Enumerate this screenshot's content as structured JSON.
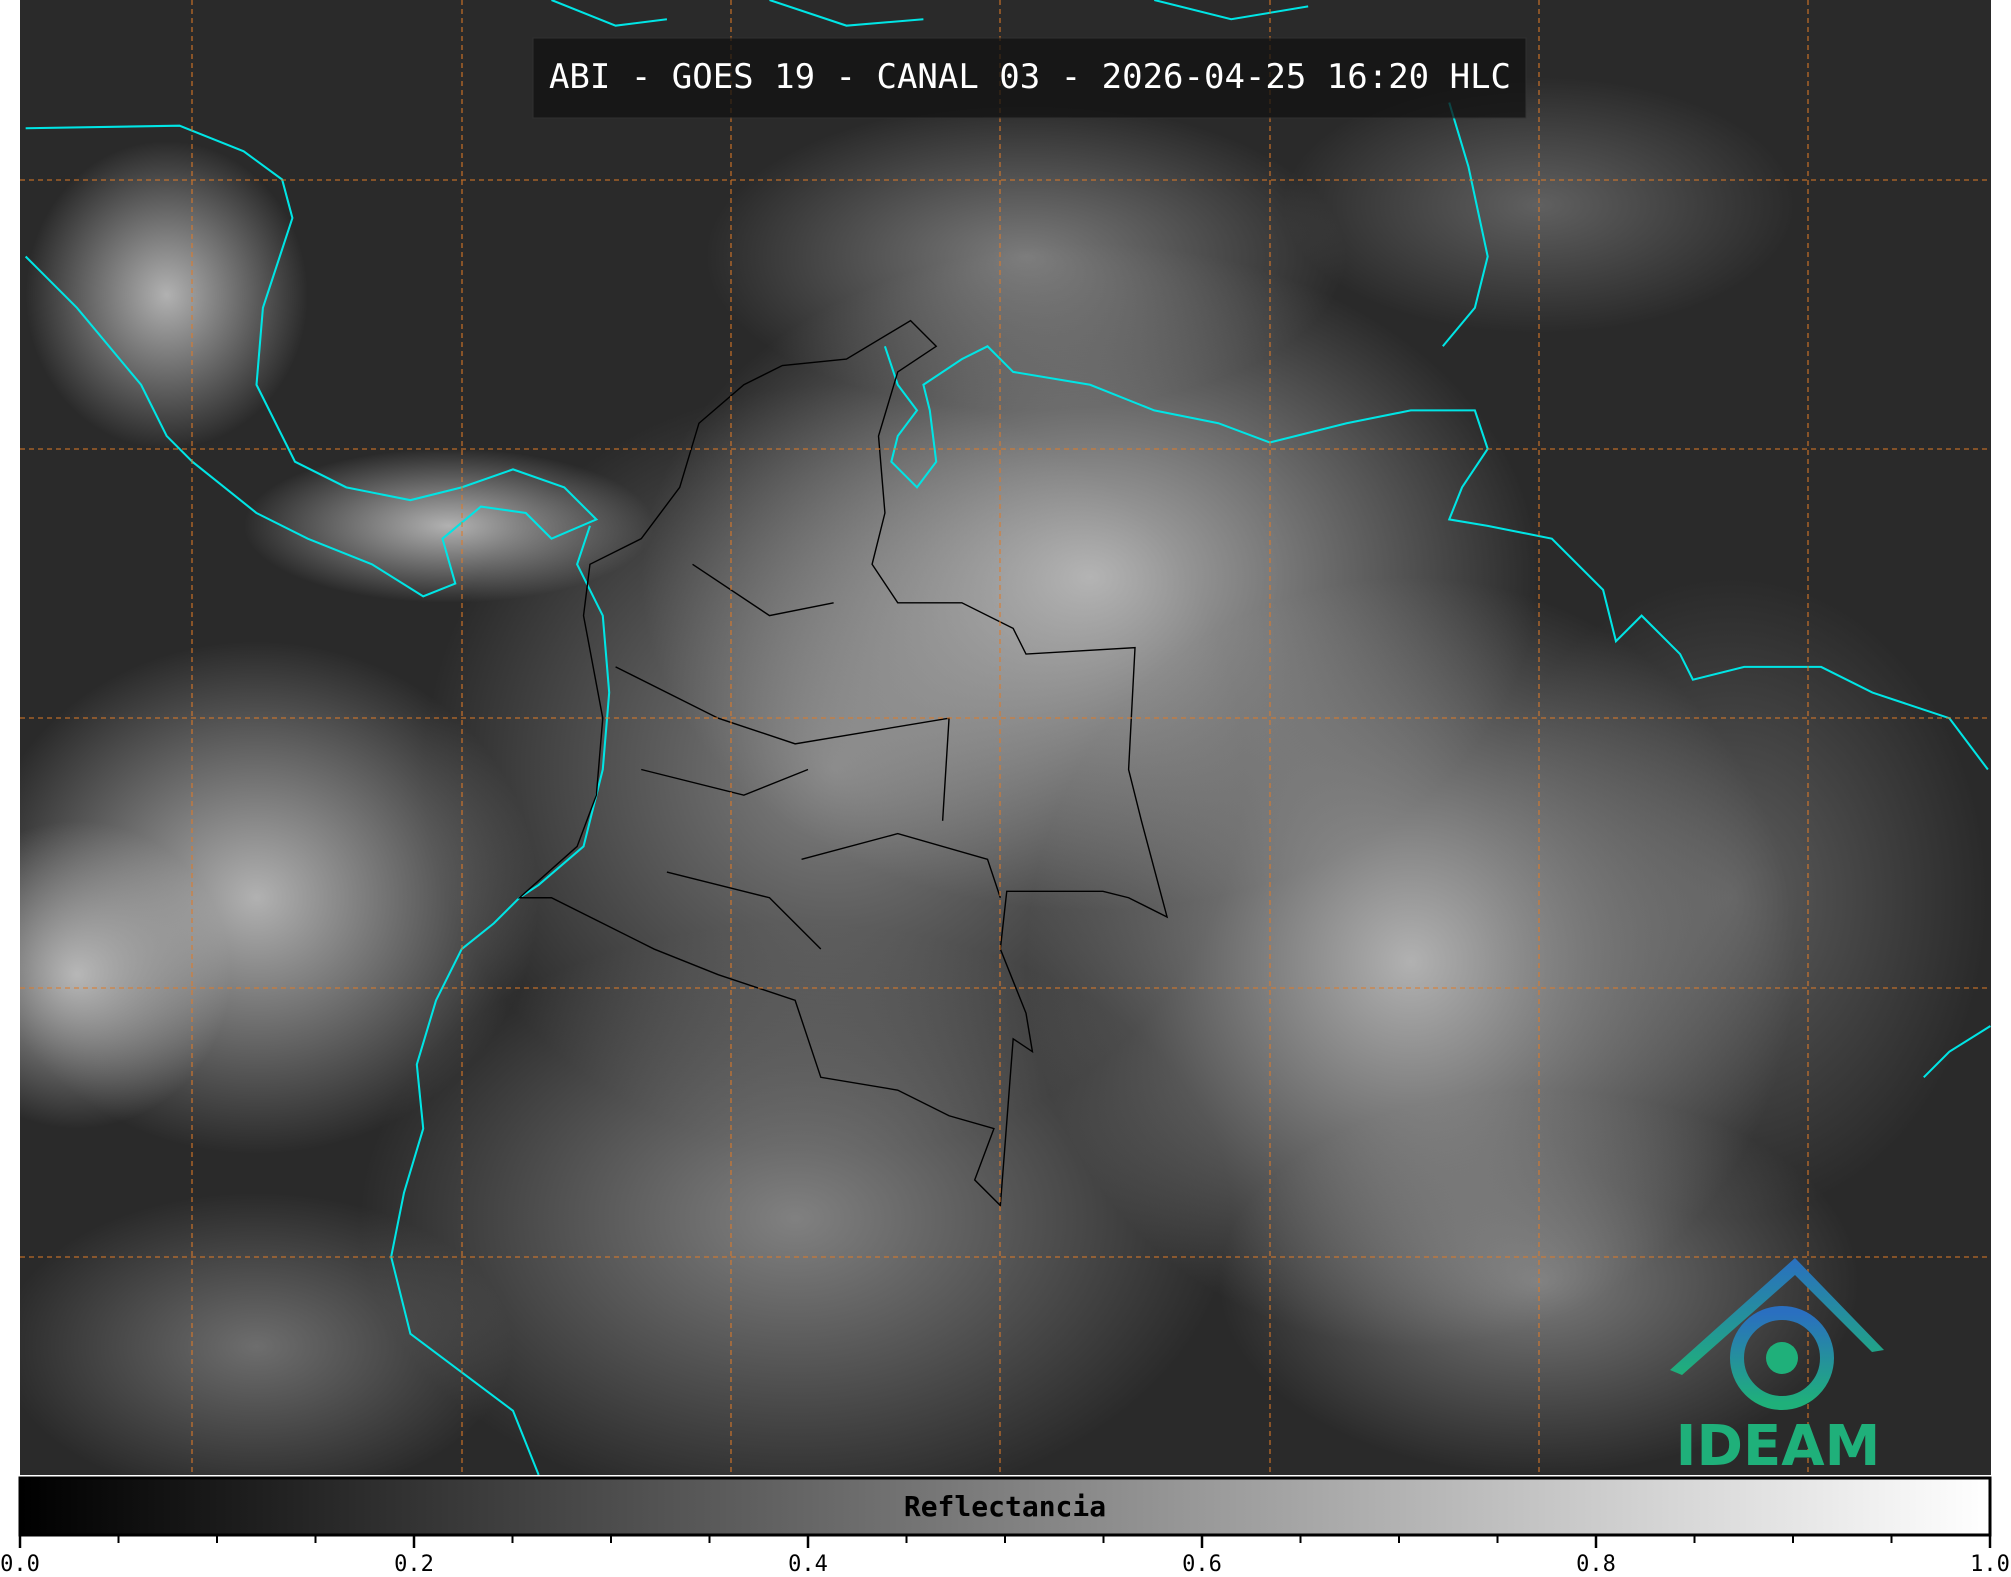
{
  "header": {
    "title": "ABI - GOES 19 - CANAL 03 - 2026-04-25 16:20 HLC"
  },
  "logo": {
    "text": "IDEAM"
  },
  "chart_data": {
    "type": "colorbar",
    "label": "Reflectancia",
    "xlim": [
      0,
      1
    ],
    "xticks": [
      {
        "value": 0,
        "label": "0.0"
      },
      {
        "value": 0.2,
        "label": "0.2"
      },
      {
        "value": 0.4,
        "label": "0.4"
      },
      {
        "value": 0.6,
        "label": "0.6"
      },
      {
        "value": 0.8,
        "label": "0.8"
      },
      {
        "value": 1,
        "label": "1.0"
      }
    ],
    "minor_ticks": [
      0.05,
      0.1,
      0.15,
      0.25,
      0.3,
      0.35,
      0.45,
      0.5,
      0.55,
      0.65,
      0.7,
      0.75,
      0.85,
      0.9,
      0.95
    ]
  }
}
